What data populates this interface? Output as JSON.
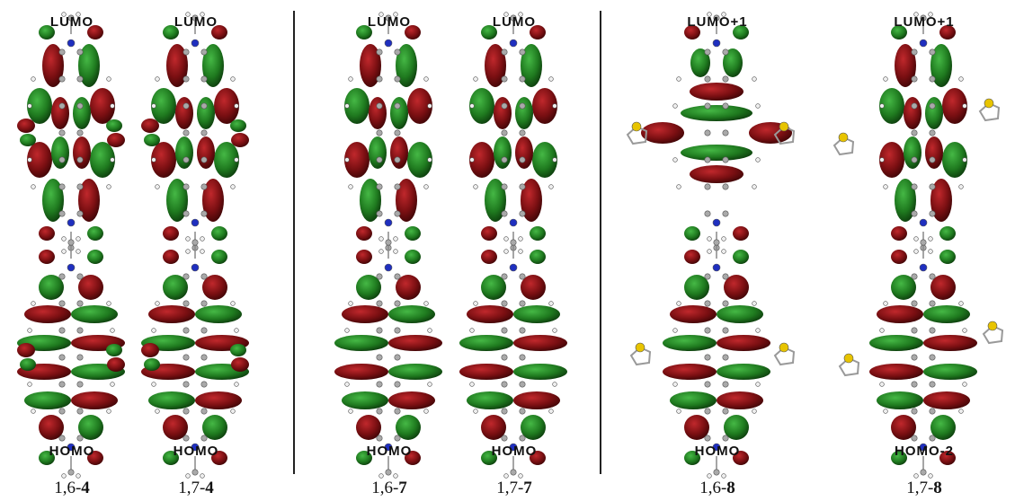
{
  "columns": [
    {
      "id": "c1",
      "top": "LUMO",
      "bottom": "HOMO",
      "prefix": "1,6-",
      "num": "4"
    },
    {
      "id": "c2",
      "top": "LUMO",
      "bottom": "HOMO",
      "prefix": "1,7-",
      "num": "4"
    },
    {
      "id": "c3",
      "top": "LUMO",
      "bottom": "HOMO",
      "prefix": "1,6-",
      "num": "7"
    },
    {
      "id": "c4",
      "top": "LUMO",
      "bottom": "HOMO",
      "prefix": "1,7-",
      "num": "7"
    },
    {
      "id": "c5",
      "top": "LUMO+1",
      "bottom": "HOMO",
      "prefix": "1,6-",
      "num": "8"
    },
    {
      "id": "c6",
      "top": "LUMO+1",
      "bottom": "HOMO-2",
      "prefix": "1,7-",
      "num": "8"
    }
  ],
  "colors": {
    "positive": "#7a0f12",
    "negative": "#1f7a1f",
    "atom_c": "#a9a9a9",
    "atom_h": "#eeeeee",
    "atom_n": "#1f2fbf",
    "atom_o": "#d01010",
    "atom_s": "#e8c400"
  }
}
